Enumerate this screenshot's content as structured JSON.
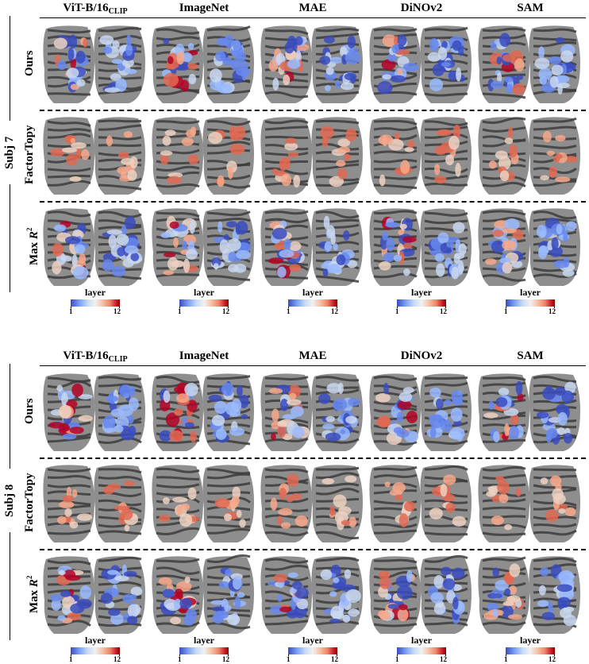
{
  "panels": [
    {
      "subject": "Subj 7",
      "columns": [
        "ViT-B/16",
        "ImageNet",
        "MAE",
        "DiNOv2",
        "SAM"
      ],
      "first_column_subscript": "CLIP",
      "rows": [
        {
          "label": "Ours"
        },
        {
          "label": "FactorTopy"
        },
        {
          "label_prefix": "Max ",
          "label_var": "R",
          "label_sup": "2"
        }
      ],
      "colorbar": {
        "label": "layer",
        "min": "1",
        "max": "12"
      }
    },
    {
      "subject": "Subj 8",
      "columns": [
        "ViT-B/16",
        "ImageNet",
        "MAE",
        "DiNOv2",
        "SAM"
      ],
      "first_column_subscript": "CLIP",
      "rows": [
        {
          "label": "Ours"
        },
        {
          "label": "FactorTopy"
        },
        {
          "label_prefix": "Max ",
          "label_var": "R",
          "label_sup": "2"
        }
      ],
      "colorbar": {
        "label": "layer",
        "min": "1",
        "max": "12"
      }
    }
  ],
  "colors": {
    "cortex_dark": "#3c3c3c",
    "cortex_light": "#8e8e8e",
    "layer_low": "#3a4cc0",
    "layer_high": "#b40426"
  }
}
